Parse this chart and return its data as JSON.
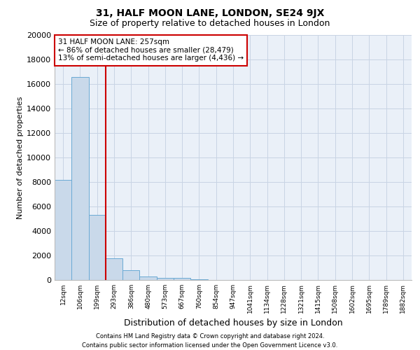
{
  "title_line1": "31, HALF MOON LANE, LONDON, SE24 9JX",
  "title_line2": "Size of property relative to detached houses in London",
  "xlabel": "Distribution of detached houses by size in London",
  "ylabel": "Number of detached properties",
  "bar_color": "#c9d9ea",
  "bar_edge_color": "#6aaad4",
  "bar_categories": [
    "12sqm",
    "106sqm",
    "199sqm",
    "293sqm",
    "386sqm",
    "480sqm",
    "573sqm",
    "667sqm",
    "760sqm",
    "854sqm",
    "947sqm",
    "1041sqm",
    "1134sqm",
    "1228sqm",
    "1321sqm",
    "1415sqm",
    "1508sqm",
    "1602sqm",
    "1695sqm",
    "1789sqm",
    "1882sqm"
  ],
  "bar_values": [
    8200,
    16600,
    5300,
    1750,
    800,
    300,
    200,
    150,
    55,
    0,
    0,
    0,
    0,
    0,
    0,
    0,
    0,
    0,
    0,
    0,
    0
  ],
  "ylim": [
    0,
    20000
  ],
  "yticks": [
    0,
    2000,
    4000,
    6000,
    8000,
    10000,
    12000,
    14000,
    16000,
    18000,
    20000
  ],
  "vline_pos": 2.5,
  "vline_color": "#cc0000",
  "annotation_line1": "31 HALF MOON LANE: 257sqm",
  "annotation_line2": "← 86% of detached houses are smaller (28,479)",
  "annotation_line3": "13% of semi-detached houses are larger (4,436) →",
  "annotation_box_color": "#ffffff",
  "annotation_box_edge": "#cc0000",
  "grid_color": "#c8d4e4",
  "bg_color": "#eaf0f8",
  "footer_line1": "Contains HM Land Registry data © Crown copyright and database right 2024.",
  "footer_line2": "Contains public sector information licensed under the Open Government Licence v3.0.",
  "title1_fontsize": 10,
  "title2_fontsize": 9,
  "ylabel_fontsize": 8,
  "xlabel_fontsize": 9,
  "ytick_fontsize": 8,
  "xtick_fontsize": 6.5,
  "annotation_fontsize": 7.5,
  "footer_fontsize": 6
}
